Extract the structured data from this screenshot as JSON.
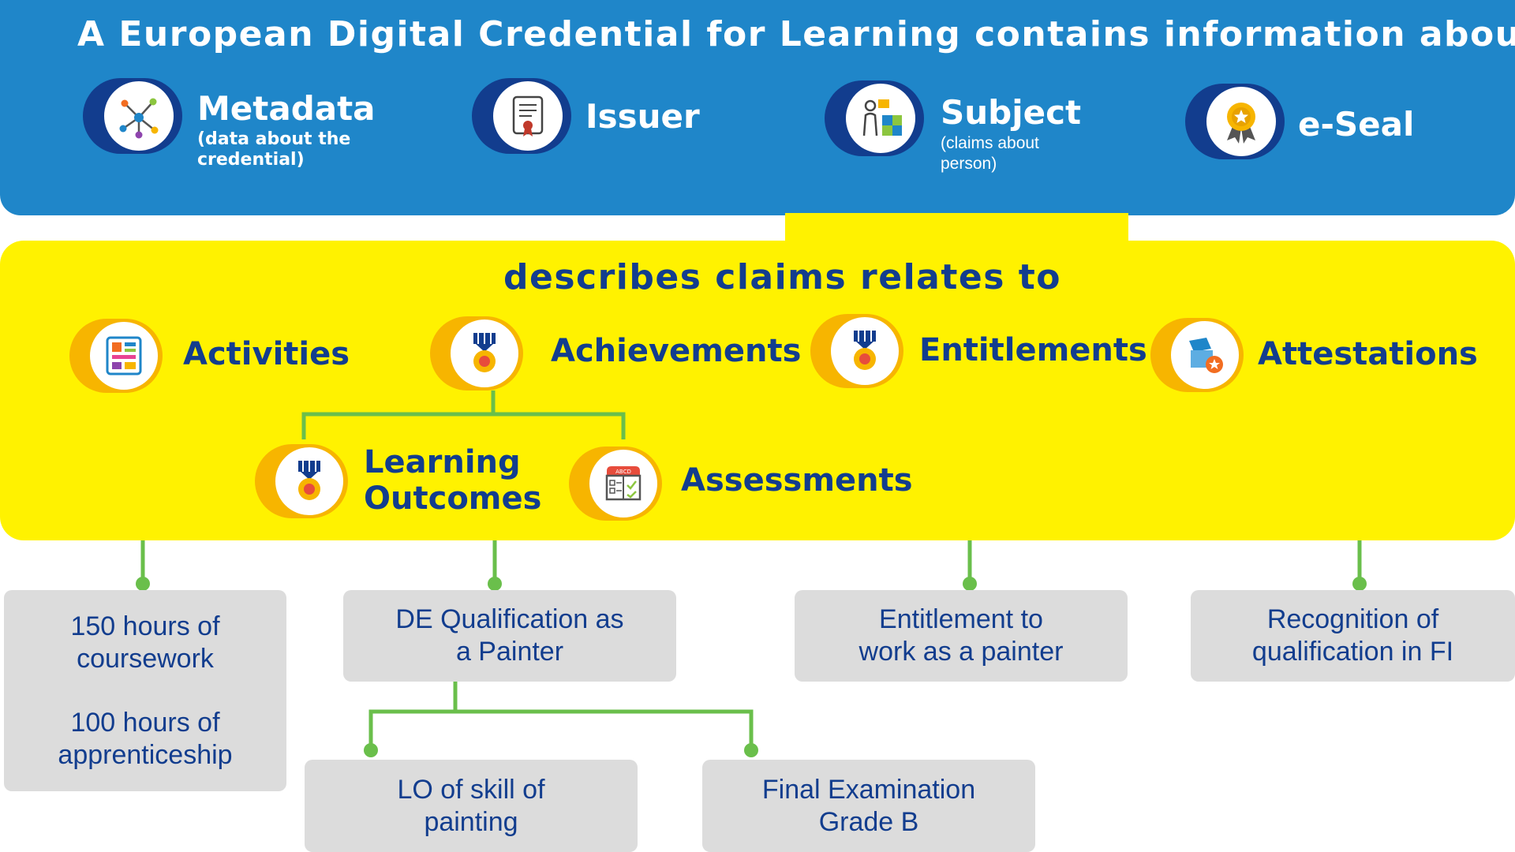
{
  "header": {
    "title": "A European Digital Credential for Learning contains information about"
  },
  "components": [
    {
      "label": "Metadata",
      "sub_line1": "(data about the",
      "sub_line2": "credential)",
      "icon": "network-icon"
    },
    {
      "label": "Issuer",
      "icon": "certificate-icon"
    },
    {
      "label": "Subject",
      "sub_line1": "(claims about",
      "sub_line2": "person)",
      "icon": "person-puzzle-icon"
    },
    {
      "label": "e-Seal",
      "icon": "award-seal-icon"
    }
  ],
  "claims": {
    "title": "describes claims relates to",
    "activities": "Activities",
    "achievements": "Achievements",
    "entitlements": "Entitlements",
    "attestations": "Attestations",
    "learning_outcomes_line1": "Learning",
    "learning_outcomes_line2": "Outcomes",
    "assessments": "Assessments"
  },
  "examples": {
    "activities": {
      "line1": "150 hours of",
      "line2": "coursework",
      "line3": "100 hours of",
      "line4": "apprenticeship"
    },
    "achievement": {
      "line1": "DE Qualification  as",
      "line2": "a Painter"
    },
    "entitlement": {
      "line1": "Entitlement to",
      "line2": "work as a painter"
    },
    "attestation": {
      "line1": "Recognition  of",
      "line2": "qualification  in  FI"
    },
    "learning_outcome": {
      "line1": "LO of skill  of",
      "line2": "painting"
    },
    "assessment": {
      "line1": "Final  Examination",
      "line2": "Grade B"
    }
  },
  "colors": {
    "blue_band": "#1f86c9",
    "navy": "#123d8e",
    "yellow": "#fff200",
    "orange": "#f7b500",
    "connector_green": "#6abf4b",
    "box_grey": "#dcdcdc"
  }
}
